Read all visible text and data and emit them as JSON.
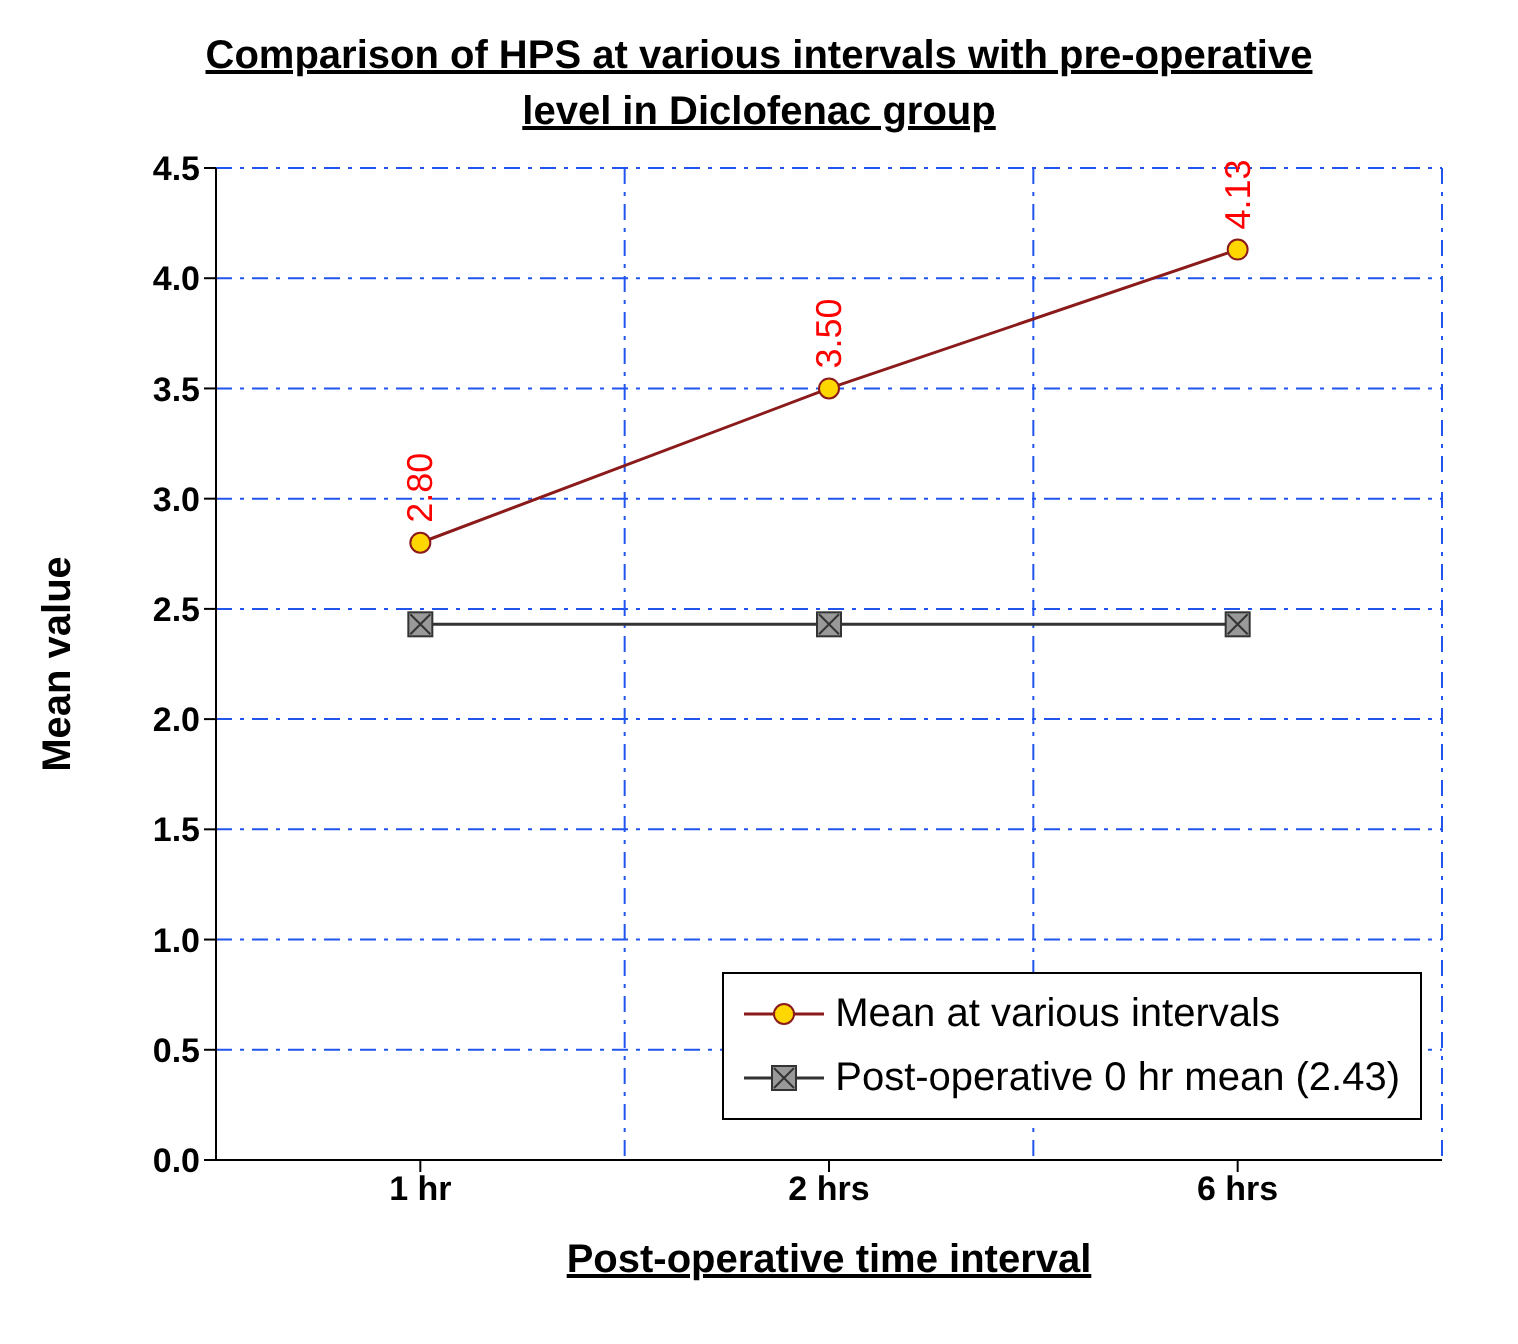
{
  "chart_data": {
    "type": "line",
    "title": "Comparison of HPS at various intervals with pre-operative level in Diclofenac group",
    "xlabel": "Post-operative time interval",
    "ylabel": "Mean value",
    "categories": [
      "1 hr",
      "2 hrs",
      "6 hrs"
    ],
    "series": [
      {
        "name": "Mean at various intervals",
        "color": "#8b1a1a",
        "marker": "circle",
        "values": [
          2.8,
          3.5,
          4.13
        ],
        "value_labels": [
          "2.80",
          "3.50",
          "4.13"
        ]
      },
      {
        "name": "Post-operative 0 hr mean (2.43)",
        "color": "#333333",
        "marker": "square",
        "values": [
          2.43,
          2.43,
          2.43
        ]
      }
    ],
    "ylim": [
      0,
      4.5
    ],
    "yticks": [
      {
        "value": 0,
        "label": "0.0"
      },
      {
        "value": 0.5,
        "label": "0.5"
      },
      {
        "value": 1,
        "label": "1.0"
      },
      {
        "value": 1.5,
        "label": "1.5"
      },
      {
        "value": 2,
        "label": "2.0"
      },
      {
        "value": 2.5,
        "label": "2.5"
      },
      {
        "value": 3,
        "label": "3.0"
      },
      {
        "value": 3.5,
        "label": "3.5"
      },
      {
        "value": 4,
        "label": "4.0"
      },
      {
        "value": 4.5,
        "label": "4.5"
      }
    ],
    "grid": true,
    "legend": "bottom right"
  }
}
